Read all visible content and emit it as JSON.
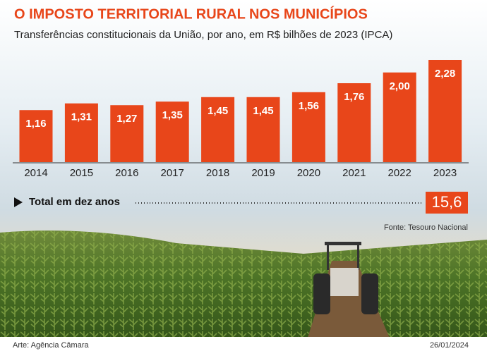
{
  "title": "O IMPOSTO TERRITORIAL RURAL NOS MUNICÍPIOS",
  "chart_data": {
    "type": "bar",
    "subtitle": "Transferências constitucionais da União, por ano, em R$ bilhões de 2023 (IPCA)",
    "categories": [
      "2014",
      "2015",
      "2016",
      "2017",
      "2018",
      "2019",
      "2020",
      "2021",
      "2022",
      "2023"
    ],
    "values": [
      1.16,
      1.31,
      1.27,
      1.35,
      1.45,
      1.45,
      1.56,
      1.76,
      2.0,
      2.28
    ],
    "value_labels": [
      "1,16",
      "1,31",
      "1,27",
      "1,35",
      "1,45",
      "1,45",
      "1,56",
      "1,76",
      "2,00",
      "2,28"
    ],
    "color": "#e8461a",
    "total": {
      "label": "Total em dez anos",
      "value": 15.6,
      "value_label": "15,6"
    },
    "source": "Fonte: Tesouro Nacional"
  },
  "credit": "Arte: Agência Câmara",
  "date": "26/01/2024"
}
